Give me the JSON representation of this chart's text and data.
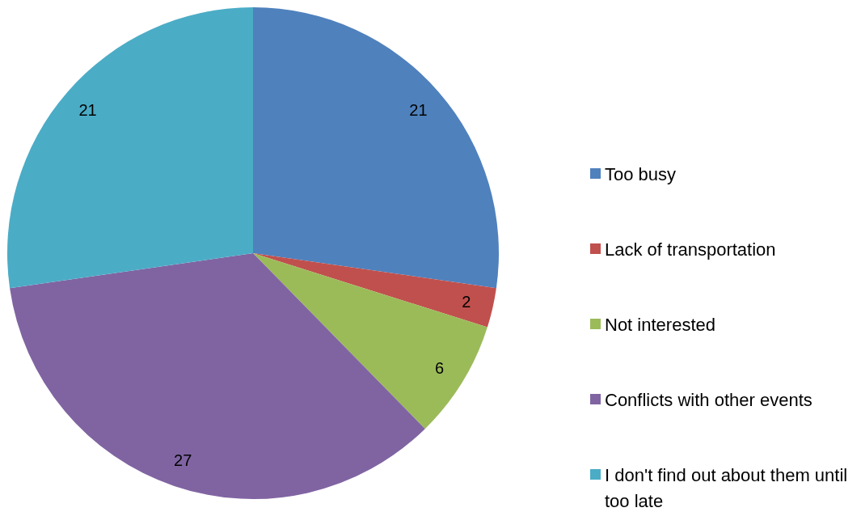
{
  "chart_data": {
    "type": "pie",
    "categories": [
      "Too busy",
      "Lack of transportation",
      "Not interested",
      "Conflicts with other events",
      "I don't find out about them until too late"
    ],
    "values": [
      21,
      2,
      6,
      27,
      21
    ],
    "colors": [
      "#4f81bd",
      "#c0504d",
      "#9bbb59",
      "#8064a2",
      "#4bacc6"
    ],
    "data_labels": true,
    "legend": "right"
  }
}
